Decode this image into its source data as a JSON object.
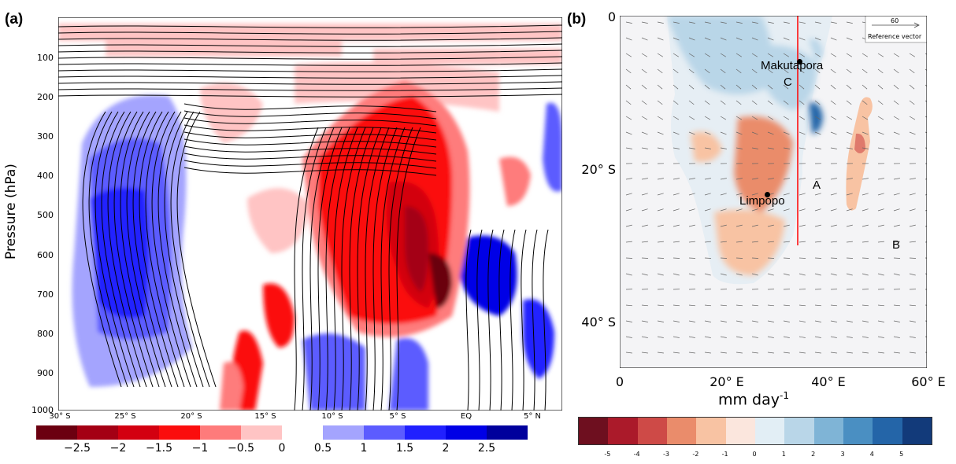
{
  "panel_a": {
    "label": "(a)",
    "y_axis_title": "Pressure (hPa)",
    "y_ticks": [
      "100",
      "200",
      "300",
      "400",
      "500",
      "600",
      "700",
      "800",
      "900",
      "1000"
    ],
    "x_ticks": [
      "30° S",
      "25° S",
      "20° S",
      "15° S",
      "10° S",
      "5° S",
      "EQ",
      "5° N"
    ],
    "colorbar_neg_labels": [
      "−2.5",
      "−2",
      "−1.5",
      "−1",
      "−0.5",
      "0"
    ],
    "colorbar_pos_labels": [
      "0.5",
      "1",
      "1.5",
      "2",
      "2.5"
    ],
    "colorbar_neg_colors": [
      "#6b0010",
      "#a40014",
      "#d30010",
      "#fb0d0d",
      "#fe7b7b",
      "#ffc4c4"
    ],
    "colorbar_pos_colors": [
      "#a4a4fe",
      "#5c5cff",
      "#2020ff",
      "#0000e6",
      "#00009c"
    ]
  },
  "panel_b": {
    "label": "(b)",
    "y_ticks": [
      "0",
      "20° S",
      "40° S"
    ],
    "x_ticks": [
      "0",
      "20° E",
      "40° E",
      "60° E"
    ],
    "unit_label_main": "mm day",
    "unit_label_sup": "-1",
    "places": {
      "makutapora": "Makutapora",
      "limpopo": "Limpopo",
      "a": "A",
      "b": "B",
      "c": "C"
    },
    "reference_vector": {
      "value": "60",
      "label": "Reference vector"
    },
    "colorbar_labels": [
      "-5",
      "-4",
      "-3",
      "-2",
      "-1",
      "0",
      "1",
      "2",
      "3",
      "4",
      "5"
    ],
    "colorbar_colors": [
      "#6e0f1f",
      "#ab1a2a",
      "#ce4a47",
      "#ea8c6b",
      "#f8c3a3",
      "#fbe6dd",
      "#e2eef5",
      "#b9d6e8",
      "#7fb4d6",
      "#4a8fc2",
      "#2465a8",
      "#123a7a"
    ]
  }
}
